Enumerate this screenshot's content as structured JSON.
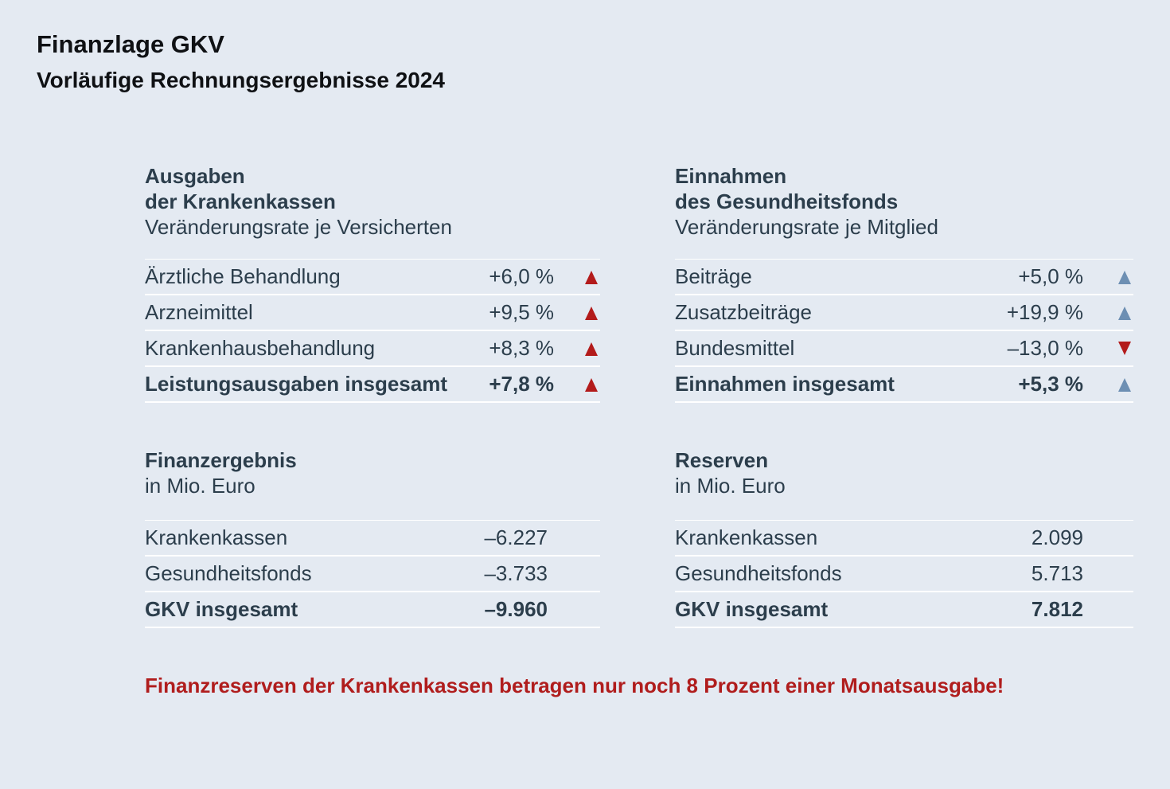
{
  "header": {
    "title": "Finanzlage GKV",
    "subtitle": "Vorläufige Rechnungsergebnisse 2024"
  },
  "colors": {
    "up_expense": "#b31b1b",
    "up_income": "#6d8fb3",
    "down_income": "#b31b1b",
    "note": "#b01d1d"
  },
  "ausgaben": {
    "heading_1": "Ausgaben",
    "heading_2": "der Krankenkassen",
    "sub": "Veränderungsrate je Versicherten",
    "rows": [
      {
        "label": "Ärztliche Behandlung",
        "value": "+6,0 %",
        "trend": "up"
      },
      {
        "label": "Arzneimittel",
        "value": "+9,5 %",
        "trend": "up"
      },
      {
        "label": "Krankenhausbehandlung",
        "value": "+8,3 %",
        "trend": "up"
      },
      {
        "label": "Leistungsausgaben insgesamt",
        "value": "+7,8 %",
        "trend": "up"
      }
    ]
  },
  "einnahmen": {
    "heading_1": "Einnahmen",
    "heading_2": "des Gesundheitsfonds",
    "sub": "Veränderungsrate je Mitglied",
    "rows": [
      {
        "label": "Beiträge",
        "value": "+5,0 %",
        "trend": "up"
      },
      {
        "label": "Zusatzbeiträge",
        "value": "+19,9 %",
        "trend": "up"
      },
      {
        "label": "Bundesmittel",
        "value": "–13,0 %",
        "trend": "down"
      },
      {
        "label": "Einnahmen insgesamt",
        "value": "+5,3 %",
        "trend": "up"
      }
    ]
  },
  "finanzergebnis": {
    "heading": "Finanzergebnis",
    "sub": "in Mio. Euro",
    "rows": [
      {
        "label": "Krankenkassen",
        "value": "–6.227"
      },
      {
        "label": "Gesundheitsfonds",
        "value": "–3.733"
      },
      {
        "label": "GKV insgesamt",
        "value": "–9.960"
      }
    ]
  },
  "reserven": {
    "heading": "Reserven",
    "sub": "in Mio. Euro",
    "rows": [
      {
        "label": "Krankenkassen",
        "value": "2.099"
      },
      {
        "label": "Gesundheitsfonds",
        "value": "5.713"
      },
      {
        "label": "GKV insgesamt",
        "value": "7.812"
      }
    ]
  },
  "note": "Finanzreserven der Krankenkassen betragen nur noch 8 Prozent einer Monatsausgabe!"
}
